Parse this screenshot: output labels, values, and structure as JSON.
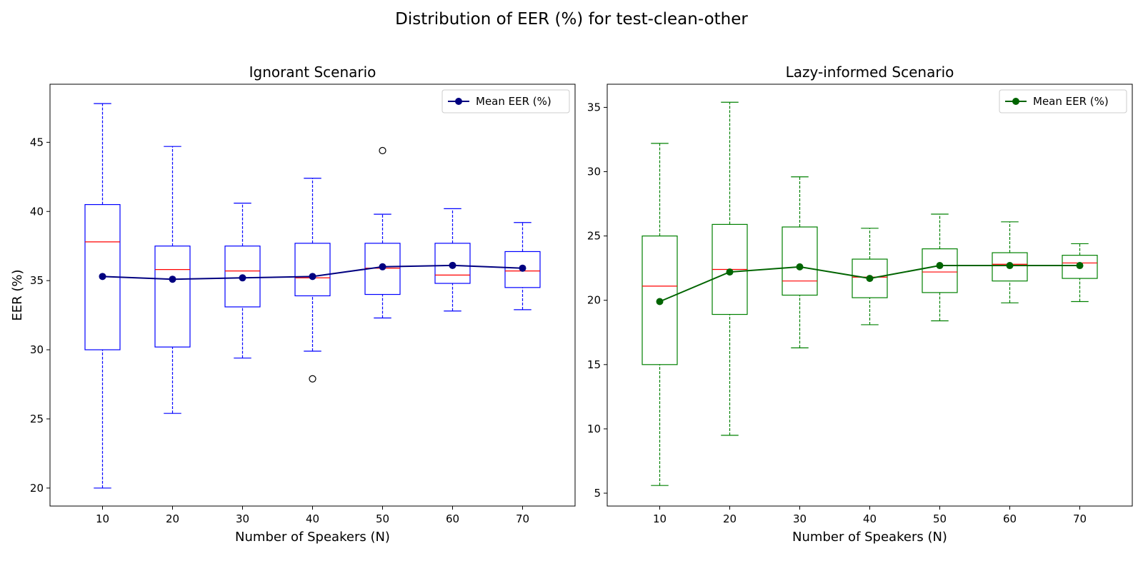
{
  "suptitle": "Distribution of EER (%) for test-clean-other",
  "chart_data": [
    {
      "type": "box",
      "title": "Ignorant Scenario",
      "xlabel": "Number of Speakers (N)",
      "ylabel": "EER (%)",
      "categories": [
        "10",
        "20",
        "30",
        "40",
        "50",
        "60",
        "70"
      ],
      "ylim": [
        18.7,
        49.2
      ],
      "yticks": [
        20,
        25,
        30,
        35,
        40,
        45
      ],
      "box_color": "#0000ff",
      "median_color": "#ff0000",
      "boxes": [
        {
          "whislo": 20.0,
          "q1": 30.0,
          "med": 37.8,
          "q3": 40.5,
          "whishi": 47.8,
          "fliers": []
        },
        {
          "whislo": 25.4,
          "q1": 30.2,
          "med": 35.8,
          "q3": 37.5,
          "whishi": 44.7,
          "fliers": []
        },
        {
          "whislo": 29.4,
          "q1": 33.1,
          "med": 35.7,
          "q3": 37.5,
          "whishi": 40.6,
          "fliers": []
        },
        {
          "whislo": 29.9,
          "q1": 33.9,
          "med": 35.2,
          "q3": 37.7,
          "whishi": 42.4,
          "fliers": [
            27.9
          ]
        },
        {
          "whislo": 32.3,
          "q1": 34.0,
          "med": 35.9,
          "q3": 37.7,
          "whishi": 39.8,
          "fliers": [
            44.4
          ]
        },
        {
          "whislo": 32.8,
          "q1": 34.8,
          "med": 35.4,
          "q3": 37.7,
          "whishi": 40.2,
          "fliers": []
        },
        {
          "whislo": 32.9,
          "q1": 34.5,
          "med": 35.7,
          "q3": 37.1,
          "whishi": 39.2,
          "fliers": []
        }
      ],
      "mean_series": {
        "name": "Mean EER (%)",
        "color": "#000080",
        "values": [
          35.3,
          35.1,
          35.2,
          35.3,
          36.0,
          36.1,
          35.9
        ]
      },
      "legend_loc": "upper right",
      "grid": false
    },
    {
      "type": "box",
      "title": "Lazy-informed Scenario",
      "xlabel": "Number of Speakers (N)",
      "ylabel": "",
      "categories": [
        "10",
        "20",
        "30",
        "40",
        "50",
        "60",
        "70"
      ],
      "ylim": [
        4.0,
        36.8
      ],
      "yticks": [
        5,
        10,
        15,
        20,
        25,
        30,
        35
      ],
      "box_color": "#008000",
      "median_color": "#ff0000",
      "boxes": [
        {
          "whislo": 5.6,
          "q1": 15.0,
          "med": 21.1,
          "q3": 25.0,
          "whishi": 32.2,
          "fliers": []
        },
        {
          "whislo": 9.5,
          "q1": 18.9,
          "med": 22.4,
          "q3": 25.9,
          "whishi": 35.4,
          "fliers": []
        },
        {
          "whislo": 16.3,
          "q1": 20.4,
          "med": 21.5,
          "q3": 25.7,
          "whishi": 29.6,
          "fliers": []
        },
        {
          "whislo": 18.1,
          "q1": 20.2,
          "med": 21.8,
          "q3": 23.2,
          "whishi": 25.6,
          "fliers": []
        },
        {
          "whislo": 18.4,
          "q1": 20.6,
          "med": 22.2,
          "q3": 24.0,
          "whishi": 26.7,
          "fliers": []
        },
        {
          "whislo": 19.8,
          "q1": 21.5,
          "med": 22.8,
          "q3": 23.7,
          "whishi": 26.1,
          "fliers": []
        },
        {
          "whislo": 19.9,
          "q1": 21.7,
          "med": 22.9,
          "q3": 23.5,
          "whishi": 24.4,
          "fliers": []
        }
      ],
      "mean_series": {
        "name": "Mean EER (%)",
        "color": "#006400",
        "values": [
          19.9,
          22.2,
          22.6,
          21.7,
          22.7,
          22.7,
          22.7
        ]
      },
      "legend_loc": "upper right",
      "grid": false
    }
  ]
}
